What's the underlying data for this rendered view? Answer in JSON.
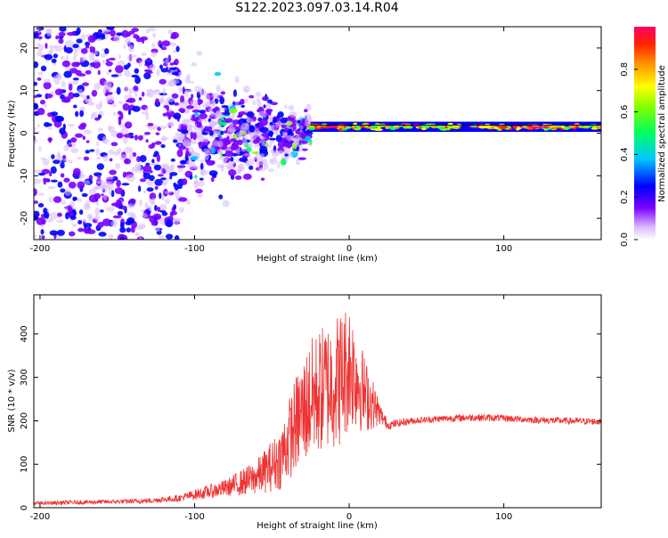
{
  "figure": {
    "title": "S122.2023.097.03.14.R04"
  },
  "chart_data": [
    {
      "type": "heatmap",
      "xlabel": "Height of straight line (km)",
      "ylabel": "Frequency (Hz)",
      "xlim": [
        -204,
        163
      ],
      "ylim": [
        -25,
        25
      ],
      "xticks": [
        "-200",
        "-100",
        "0",
        "100"
      ],
      "xtick_values": [
        -200,
        -100,
        0,
        100
      ],
      "yticks": [
        "-20",
        "-10",
        "0",
        "10",
        "20"
      ],
      "ytick_values": [
        -20,
        -10,
        0,
        10,
        20
      ],
      "colorbar": {
        "label": "Normalized spectral amplitude",
        "range": [
          0,
          1
        ],
        "ticks": [
          "0.0",
          "0.2",
          "0.4",
          "0.6",
          "0.8"
        ],
        "tick_values": [
          0.0,
          0.2,
          0.4,
          0.6,
          0.8
        ]
      },
      "signal_line_frequency_hz": 1.5,
      "regions": [
        {
          "x_range": [
            -204,
            -110
          ],
          "freq_spread_hz": 25,
          "amplitude": 0.2
        },
        {
          "x_range": [
            -110,
            -25
          ],
          "freq_spread_hz": 10,
          "amplitude": 0.35
        },
        {
          "x_range": [
            -25,
            163
          ],
          "freq_spread_hz": 1.5,
          "amplitude": 0.85
        }
      ]
    },
    {
      "type": "line",
      "xlabel": "Height of straight line (km)",
      "ylabel": "SNR (10 * v/v)",
      "xlim": [
        -204,
        163
      ],
      "ylim": [
        0,
        490
      ],
      "xticks": [
        "-200",
        "-100",
        "0",
        "100"
      ],
      "xtick_values": [
        -200,
        -100,
        0,
        100
      ],
      "yticks": [
        "0",
        "100",
        "200",
        "300",
        "400"
      ],
      "ytick_values": [
        0,
        100,
        200,
        300,
        400
      ],
      "color": "#ee3333",
      "envelope": {
        "x": [
          -204,
          -180,
          -150,
          -130,
          -110,
          -100,
          -80,
          -60,
          -45,
          -35,
          -25,
          -15,
          -5,
          0,
          5,
          10,
          15,
          20,
          25,
          40,
          60,
          80,
          100,
          120,
          140,
          163
        ],
        "y": [
          10,
          12,
          14,
          16,
          22,
          30,
          45,
          70,
          110,
          190,
          250,
          280,
          300,
          330,
          300,
          260,
          240,
          215,
          190,
          200,
          205,
          208,
          206,
          202,
          200,
          198
        ],
        "noise": [
          4,
          5,
          5,
          6,
          8,
          12,
          20,
          40,
          70,
          110,
          140,
          150,
          160,
          150,
          120,
          90,
          60,
          25,
          10,
          8,
          8,
          9,
          8,
          8,
          8,
          8
        ]
      }
    }
  ]
}
